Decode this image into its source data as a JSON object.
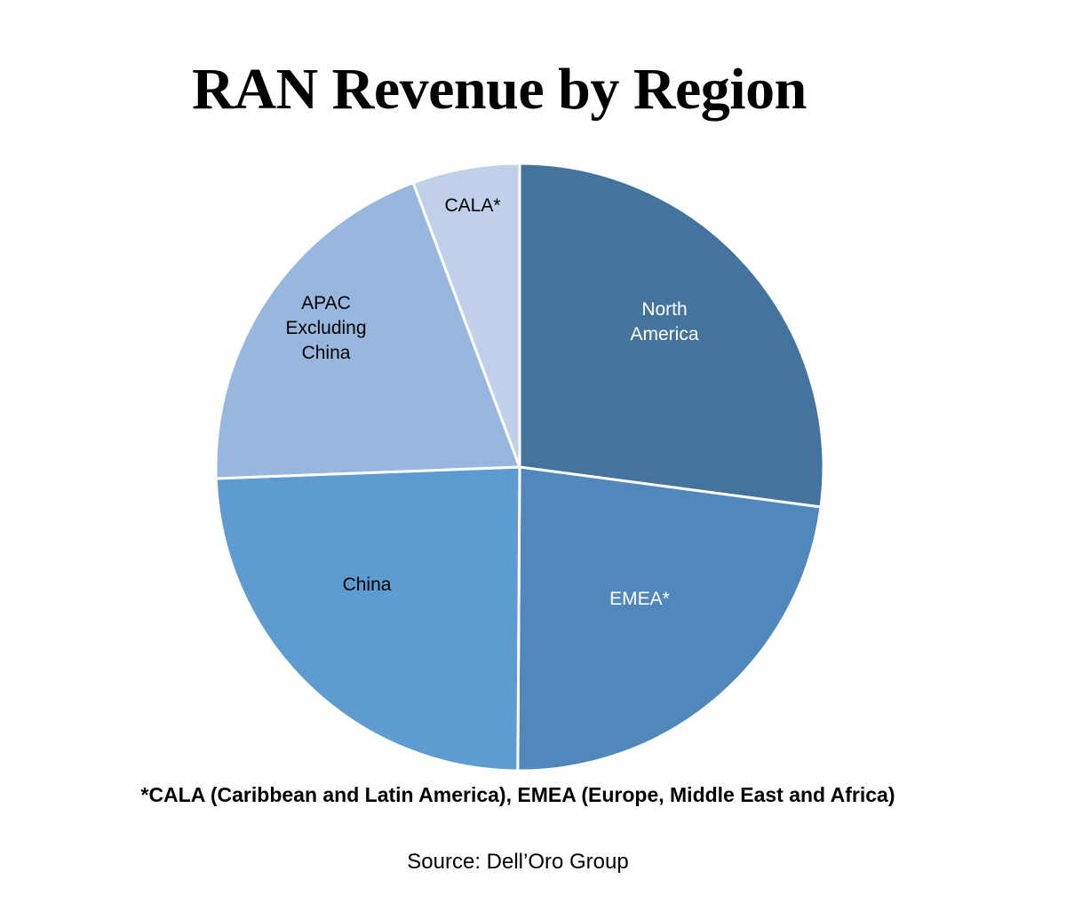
{
  "chart_data": {
    "type": "pie",
    "title": "RAN Revenue by Region",
    "start_angle_deg": 0,
    "direction": "clockwise",
    "slices": [
      {
        "label": "North America",
        "label_lines": [
          "North",
          "America"
        ],
        "value": 27.1,
        "color": "#44739e",
        "text_color": "#ffffff"
      },
      {
        "label": "EMEA*",
        "label_lines": [
          "EMEA*"
        ],
        "value": 23.0,
        "color": "#5088bb",
        "text_color": "#ffffff"
      },
      {
        "label": "China",
        "label_lines": [
          "China"
        ],
        "value": 24.3,
        "color": "#5e9bd1",
        "text_color": "#000000"
      },
      {
        "label": "APAC Excluding China",
        "label_lines": [
          "APAC",
          "Excluding",
          "China"
        ],
        "value": 19.9,
        "color": "#97b7de",
        "text_color": "#000000"
      },
      {
        "label": "CALA*",
        "label_lines": [
          "CALA*"
        ],
        "value": 5.7,
        "color": "#bfd0e8",
        "text_color": "#000000"
      }
    ],
    "units": "percent share (estimated from slice angles)",
    "legend": "none (labels inside slices)",
    "footnote": "*CALA (Caribbean and Latin America), EMEA (Europe, Middle East and Africa)",
    "source": "Source: Dell’Oro Group"
  },
  "title": "RAN Revenue by Region",
  "footnote": "*CALA (Caribbean and Latin America), EMEA (Europe, Middle East and Africa)",
  "source": "Source: Dell’Oro Group"
}
